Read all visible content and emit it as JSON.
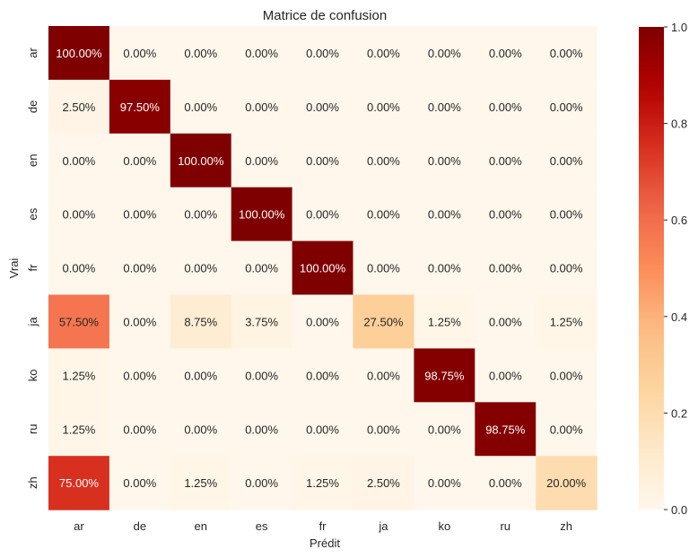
{
  "chart_data": {
    "type": "heatmap",
    "title": "Matrice de confusion",
    "xlabel": "Prédit",
    "ylabel": "Vrai",
    "x_labels": [
      "ar",
      "de",
      "en",
      "es",
      "fr",
      "ja",
      "ko",
      "ru",
      "zh"
    ],
    "y_labels": [
      "ar",
      "de",
      "en",
      "es",
      "fr",
      "ja",
      "ko",
      "ru",
      "zh"
    ],
    "values": [
      [
        1.0,
        0.0,
        0.0,
        0.0,
        0.0,
        0.0,
        0.0,
        0.0,
        0.0
      ],
      [
        0.025,
        0.975,
        0.0,
        0.0,
        0.0,
        0.0,
        0.0,
        0.0,
        0.0
      ],
      [
        0.0,
        0.0,
        1.0,
        0.0,
        0.0,
        0.0,
        0.0,
        0.0,
        0.0
      ],
      [
        0.0,
        0.0,
        0.0,
        1.0,
        0.0,
        0.0,
        0.0,
        0.0,
        0.0
      ],
      [
        0.0,
        0.0,
        0.0,
        0.0,
        1.0,
        0.0,
        0.0,
        0.0,
        0.0
      ],
      [
        0.575,
        0.0,
        0.0875,
        0.0375,
        0.0,
        0.275,
        0.0125,
        0.0,
        0.0125
      ],
      [
        0.0125,
        0.0,
        0.0,
        0.0,
        0.0,
        0.0,
        0.9875,
        0.0,
        0.0
      ],
      [
        0.0125,
        0.0,
        0.0,
        0.0,
        0.0,
        0.0,
        0.0,
        0.9875,
        0.0
      ],
      [
        0.75,
        0.0,
        0.0125,
        0.0,
        0.0125,
        0.025,
        0.0,
        0.0,
        0.2
      ]
    ],
    "cell_labels": [
      [
        "100.00%",
        "0.00%",
        "0.00%",
        "0.00%",
        "0.00%",
        "0.00%",
        "0.00%",
        "0.00%",
        "0.00%"
      ],
      [
        "2.50%",
        "97.50%",
        "0.00%",
        "0.00%",
        "0.00%",
        "0.00%",
        "0.00%",
        "0.00%",
        "0.00%"
      ],
      [
        "0.00%",
        "0.00%",
        "100.00%",
        "0.00%",
        "0.00%",
        "0.00%",
        "0.00%",
        "0.00%",
        "0.00%"
      ],
      [
        "0.00%",
        "0.00%",
        "0.00%",
        "100.00%",
        "0.00%",
        "0.00%",
        "0.00%",
        "0.00%",
        "0.00%"
      ],
      [
        "0.00%",
        "0.00%",
        "0.00%",
        "0.00%",
        "100.00%",
        "0.00%",
        "0.00%",
        "0.00%",
        "0.00%"
      ],
      [
        "57.50%",
        "0.00%",
        "8.75%",
        "3.75%",
        "0.00%",
        "27.50%",
        "1.25%",
        "0.00%",
        "1.25%"
      ],
      [
        "1.25%",
        "0.00%",
        "0.00%",
        "0.00%",
        "0.00%",
        "0.00%",
        "98.75%",
        "0.00%",
        "0.00%"
      ],
      [
        "1.25%",
        "0.00%",
        "0.00%",
        "0.00%",
        "0.00%",
        "0.00%",
        "0.00%",
        "98.75%",
        "0.00%"
      ],
      [
        "75.00%",
        "0.00%",
        "1.25%",
        "0.00%",
        "1.25%",
        "2.50%",
        "0.00%",
        "0.00%",
        "20.00%"
      ]
    ],
    "colormap": "OrRd",
    "vmin": 0.0,
    "vmax": 1.0,
    "colorbar_ticks": [
      0.0,
      0.2,
      0.4,
      0.6,
      0.8,
      1.0
    ],
    "colorbar_tick_labels": [
      "0.0",
      "0.2",
      "0.4",
      "0.6",
      "0.8",
      "1.0"
    ],
    "colorbar_placement": "right",
    "grid": false
  }
}
